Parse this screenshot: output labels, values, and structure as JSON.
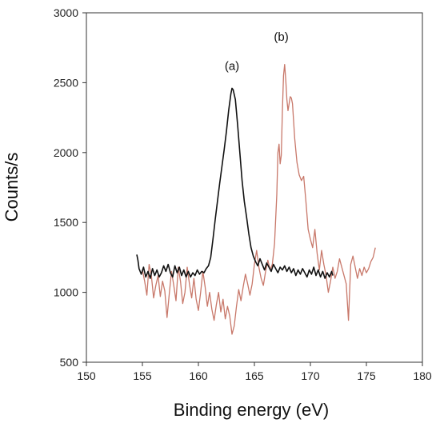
{
  "chart_data": {
    "type": "line",
    "title": "",
    "xlabel": "Binding energy (eV)",
    "ylabel": "Counts/s",
    "xlim": [
      150,
      180
    ],
    "ylim": [
      500,
      3000
    ],
    "xticks": [
      "150",
      "155",
      "160",
      "165",
      "170",
      "175",
      "180"
    ],
    "yticks": [
      "500",
      "1000",
      "1500",
      "2000",
      "2500",
      "3000"
    ],
    "grid": false,
    "legend": "none",
    "annotations": [
      {
        "text": "(a)",
        "x": 163.0,
        "y": 2590
      },
      {
        "text": "(b)",
        "x": 167.4,
        "y": 2800
      }
    ],
    "series": [
      {
        "color": "#111111",
        "points": [
          [
            154.5,
            1270
          ],
          [
            154.6,
            1230
          ],
          [
            154.7,
            1170
          ],
          [
            154.9,
            1130
          ],
          [
            155.1,
            1180
          ],
          [
            155.3,
            1110
          ],
          [
            155.5,
            1150
          ],
          [
            155.7,
            1100
          ],
          [
            155.9,
            1170
          ],
          [
            156.1,
            1120
          ],
          [
            156.3,
            1160
          ],
          [
            156.5,
            1110
          ],
          [
            156.7,
            1140
          ],
          [
            156.9,
            1190
          ],
          [
            157.1,
            1150
          ],
          [
            157.3,
            1200
          ],
          [
            157.5,
            1140
          ],
          [
            157.7,
            1110
          ],
          [
            157.9,
            1190
          ],
          [
            158.1,
            1140
          ],
          [
            158.3,
            1180
          ],
          [
            158.5,
            1120
          ],
          [
            158.7,
            1160
          ],
          [
            158.9,
            1110
          ],
          [
            159.1,
            1150
          ],
          [
            159.3,
            1110
          ],
          [
            159.5,
            1140
          ],
          [
            159.7,
            1120
          ],
          [
            159.9,
            1160
          ],
          [
            160.1,
            1130
          ],
          [
            160.3,
            1150
          ],
          [
            160.5,
            1140
          ],
          [
            160.7,
            1170
          ],
          [
            160.9,
            1190
          ],
          [
            161.1,
            1250
          ],
          [
            161.3,
            1380
          ],
          [
            161.5,
            1520
          ],
          [
            161.7,
            1650
          ],
          [
            161.9,
            1780
          ],
          [
            162.1,
            1900
          ],
          [
            162.3,
            2020
          ],
          [
            162.5,
            2150
          ],
          [
            162.7,
            2300
          ],
          [
            162.9,
            2420
          ],
          [
            163.0,
            2460
          ],
          [
            163.1,
            2450
          ],
          [
            163.3,
            2380
          ],
          [
            163.5,
            2200
          ],
          [
            163.7,
            2000
          ],
          [
            163.9,
            1800
          ],
          [
            164.1,
            1650
          ],
          [
            164.3,
            1540
          ],
          [
            164.5,
            1420
          ],
          [
            164.7,
            1320
          ],
          [
            164.9,
            1260
          ],
          [
            165.1,
            1220
          ],
          [
            165.3,
            1190
          ],
          [
            165.5,
            1240
          ],
          [
            165.7,
            1200
          ],
          [
            165.9,
            1160
          ],
          [
            166.1,
            1210
          ],
          [
            166.3,
            1180
          ],
          [
            166.5,
            1150
          ],
          [
            166.7,
            1200
          ],
          [
            166.9,
            1170
          ],
          [
            167.1,
            1140
          ],
          [
            167.3,
            1180
          ],
          [
            167.5,
            1160
          ],
          [
            167.7,
            1190
          ],
          [
            167.9,
            1150
          ],
          [
            168.1,
            1180
          ],
          [
            168.3,
            1140
          ],
          [
            168.5,
            1170
          ],
          [
            168.7,
            1120
          ],
          [
            168.9,
            1160
          ],
          [
            169.1,
            1130
          ],
          [
            169.3,
            1170
          ],
          [
            169.5,
            1140
          ],
          [
            169.7,
            1110
          ],
          [
            169.9,
            1160
          ],
          [
            170.1,
            1130
          ],
          [
            170.3,
            1180
          ],
          [
            170.5,
            1120
          ],
          [
            170.7,
            1160
          ],
          [
            170.9,
            1110
          ],
          [
            171.1,
            1150
          ],
          [
            171.3,
            1100
          ],
          [
            171.5,
            1140
          ],
          [
            171.7,
            1110
          ],
          [
            171.9,
            1150
          ],
          [
            172.0,
            1120
          ]
        ]
      },
      {
        "color": "#c8786a",
        "points": [
          [
            155.0,
            1160
          ],
          [
            155.2,
            1080
          ],
          [
            155.4,
            980
          ],
          [
            155.6,
            1200
          ],
          [
            155.8,
            1120
          ],
          [
            156.0,
            960
          ],
          [
            156.2,
            1050
          ],
          [
            156.4,
            1120
          ],
          [
            156.6,
            970
          ],
          [
            156.8,
            1080
          ],
          [
            157.0,
            1010
          ],
          [
            157.2,
            820
          ],
          [
            157.4,
            990
          ],
          [
            157.6,
            1150
          ],
          [
            157.8,
            1050
          ],
          [
            158.0,
            940
          ],
          [
            158.2,
            1180
          ],
          [
            158.4,
            1080
          ],
          [
            158.6,
            920
          ],
          [
            158.8,
            1000
          ],
          [
            159.0,
            1180
          ],
          [
            159.2,
            1060
          ],
          [
            159.4,
            960
          ],
          [
            159.6,
            1100
          ],
          [
            159.8,
            950
          ],
          [
            160.0,
            870
          ],
          [
            160.2,
            1000
          ],
          [
            160.4,
            1150
          ],
          [
            160.6,
            1040
          ],
          [
            160.8,
            900
          ],
          [
            161.0,
            1000
          ],
          [
            161.2,
            880
          ],
          [
            161.4,
            800
          ],
          [
            161.6,
            910
          ],
          [
            161.8,
            1000
          ],
          [
            162.0,
            860
          ],
          [
            162.2,
            950
          ],
          [
            162.4,
            810
          ],
          [
            162.6,
            900
          ],
          [
            162.8,
            830
          ],
          [
            163.0,
            700
          ],
          [
            163.2,
            760
          ],
          [
            163.4,
            900
          ],
          [
            163.6,
            1020
          ],
          [
            163.8,
            940
          ],
          [
            164.0,
            1040
          ],
          [
            164.2,
            1130
          ],
          [
            164.4,
            1060
          ],
          [
            164.6,
            980
          ],
          [
            164.8,
            1060
          ],
          [
            165.0,
            1200
          ],
          [
            165.2,
            1300
          ],
          [
            165.4,
            1180
          ],
          [
            165.6,
            1100
          ],
          [
            165.8,
            1050
          ],
          [
            166.0,
            1150
          ],
          [
            166.2,
            1230
          ],
          [
            166.4,
            1160
          ],
          [
            166.6,
            1200
          ],
          [
            166.8,
            1350
          ],
          [
            167.0,
            1700
          ],
          [
            167.1,
            2000
          ],
          [
            167.2,
            2060
          ],
          [
            167.3,
            1920
          ],
          [
            167.4,
            1980
          ],
          [
            167.5,
            2300
          ],
          [
            167.6,
            2550
          ],
          [
            167.7,
            2630
          ],
          [
            167.8,
            2520
          ],
          [
            167.9,
            2380
          ],
          [
            168.0,
            2300
          ],
          [
            168.1,
            2350
          ],
          [
            168.2,
            2400
          ],
          [
            168.3,
            2390
          ],
          [
            168.4,
            2350
          ],
          [
            168.6,
            2100
          ],
          [
            168.8,
            1930
          ],
          [
            169.0,
            1840
          ],
          [
            169.2,
            1800
          ],
          [
            169.4,
            1830
          ],
          [
            169.6,
            1650
          ],
          [
            169.8,
            1450
          ],
          [
            170.0,
            1380
          ],
          [
            170.2,
            1320
          ],
          [
            170.4,
            1450
          ],
          [
            170.6,
            1280
          ],
          [
            170.8,
            1160
          ],
          [
            171.0,
            1300
          ],
          [
            171.2,
            1200
          ],
          [
            171.4,
            1120
          ],
          [
            171.6,
            1000
          ],
          [
            171.8,
            1080
          ],
          [
            172.0,
            1180
          ],
          [
            172.2,
            1100
          ],
          [
            172.4,
            1150
          ],
          [
            172.6,
            1240
          ],
          [
            172.8,
            1180
          ],
          [
            173.0,
            1120
          ],
          [
            173.2,
            1060
          ],
          [
            173.4,
            800
          ],
          [
            173.6,
            1200
          ],
          [
            173.8,
            1260
          ],
          [
            174.0,
            1180
          ],
          [
            174.2,
            1100
          ],
          [
            174.4,
            1170
          ],
          [
            174.6,
            1120
          ],
          [
            174.8,
            1180
          ],
          [
            175.0,
            1140
          ],
          [
            175.2,
            1170
          ],
          [
            175.4,
            1220
          ],
          [
            175.6,
            1250
          ],
          [
            175.8,
            1320
          ]
        ]
      }
    ]
  }
}
